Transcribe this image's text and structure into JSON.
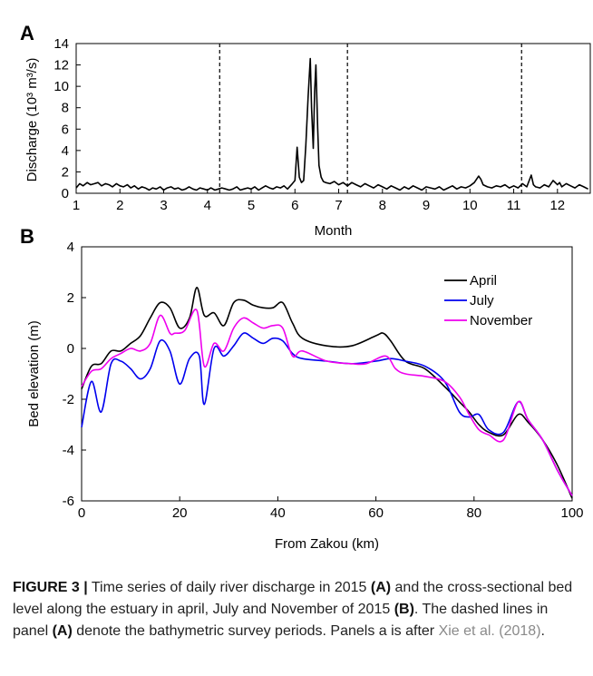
{
  "chart_data": [
    {
      "panel": "A",
      "type": "line",
      "xlabel": "Month",
      "ylabel": "Discharge (10³ m³/s)",
      "xlim": [
        1,
        12.75
      ],
      "ylim": [
        0,
        14
      ],
      "xticks": [
        "1",
        "2",
        "3",
        "4",
        "5",
        "6",
        "7",
        "8",
        "9",
        "10",
        "11",
        "12"
      ],
      "yticks": [
        "0",
        "2",
        "4",
        "6",
        "8",
        "10",
        "12",
        "14"
      ],
      "vlines_dashed": [
        4.28,
        7.2,
        11.18
      ],
      "grid": false,
      "series": [
        {
          "color": "#000000",
          "x": [
            1.0,
            1.08,
            1.16,
            1.25,
            1.33,
            1.42,
            1.5,
            1.58,
            1.67,
            1.75,
            1.83,
            1.92,
            2.0,
            2.08,
            2.17,
            2.25,
            2.33,
            2.42,
            2.5,
            2.58,
            2.67,
            2.75,
            2.83,
            2.92,
            3.0,
            3.08,
            3.17,
            3.25,
            3.33,
            3.42,
            3.5,
            3.58,
            3.67,
            3.75,
            3.83,
            3.92,
            4.0,
            4.08,
            4.17,
            4.25,
            4.33,
            4.42,
            4.5,
            4.58,
            4.67,
            4.75,
            4.83,
            4.92,
            5.0,
            5.08,
            5.17,
            5.25,
            5.33,
            5.42,
            5.5,
            5.58,
            5.67,
            5.75,
            5.83,
            5.92,
            6.0,
            6.05,
            6.1,
            6.15,
            6.2,
            6.25,
            6.3,
            6.35,
            6.38,
            6.42,
            6.45,
            6.48,
            6.52,
            6.55,
            6.6,
            6.65,
            6.7,
            6.8,
            6.9,
            7.0,
            7.1,
            7.2,
            7.3,
            7.4,
            7.5,
            7.6,
            7.7,
            7.8,
            7.9,
            8.0,
            8.1,
            8.2,
            8.3,
            8.4,
            8.5,
            8.6,
            8.7,
            8.8,
            8.9,
            9.0,
            9.1,
            9.2,
            9.3,
            9.4,
            9.5,
            9.6,
            9.7,
            9.8,
            9.9,
            10.0,
            10.1,
            10.2,
            10.25,
            10.3,
            10.4,
            10.5,
            10.6,
            10.7,
            10.8,
            10.9,
            11.0,
            11.1,
            11.2,
            11.3,
            11.4,
            11.45,
            11.5,
            11.6,
            11.7,
            11.8,
            11.9,
            12.0,
            12.05,
            12.1,
            12.2,
            12.3,
            12.4,
            12.5,
            12.6,
            12.7
          ],
          "y": [
            0.5,
            0.9,
            0.7,
            1.0,
            0.8,
            0.9,
            1.0,
            0.7,
            0.9,
            0.8,
            0.6,
            0.9,
            0.7,
            0.6,
            0.8,
            0.5,
            0.7,
            0.4,
            0.6,
            0.5,
            0.3,
            0.5,
            0.4,
            0.6,
            0.3,
            0.5,
            0.6,
            0.4,
            0.5,
            0.3,
            0.4,
            0.6,
            0.4,
            0.3,
            0.5,
            0.4,
            0.3,
            0.5,
            0.3,
            0.4,
            0.5,
            0.4,
            0.3,
            0.4,
            0.6,
            0.3,
            0.4,
            0.5,
            0.4,
            0.6,
            0.3,
            0.5,
            0.7,
            0.5,
            0.4,
            0.6,
            0.5,
            0.7,
            0.4,
            0.8,
            1.2,
            4.3,
            1.5,
            1.0,
            1.2,
            4.5,
            9.0,
            12.6,
            8.0,
            4.2,
            9.5,
            12.0,
            6.0,
            2.6,
            1.5,
            1.1,
            1.0,
            0.9,
            1.1,
            0.8,
            1.0,
            0.7,
            1.0,
            0.8,
            0.6,
            0.9,
            0.7,
            0.5,
            0.8,
            0.6,
            0.4,
            0.7,
            0.5,
            0.3,
            0.6,
            0.4,
            0.7,
            0.5,
            0.3,
            0.6,
            0.5,
            0.4,
            0.6,
            0.3,
            0.5,
            0.7,
            0.4,
            0.6,
            0.5,
            0.7,
            1.0,
            1.6,
            1.3,
            0.8,
            0.6,
            0.5,
            0.7,
            0.6,
            0.8,
            0.5,
            0.7,
            0.5,
            0.9,
            0.6,
            1.7,
            0.8,
            0.6,
            0.5,
            0.8,
            0.6,
            1.2,
            0.8,
            1.0,
            0.6,
            0.9,
            0.7,
            0.5,
            0.8,
            0.6,
            0.4
          ]
        }
      ]
    },
    {
      "panel": "B",
      "type": "line",
      "xlabel": "From Zakou (km)",
      "ylabel": "Bed elevation (m)",
      "xlim": [
        0,
        100
      ],
      "ylim": [
        -6,
        4
      ],
      "xticks": [
        "0",
        "20",
        "40",
        "60",
        "80",
        "100"
      ],
      "yticks": [
        "-6",
        "-4",
        "-2",
        "0",
        "2",
        "4"
      ],
      "legend_position": "top-right",
      "grid": false,
      "series": [
        {
          "name": "April",
          "color": "#000000",
          "x": [
            0,
            2,
            4,
            6,
            8,
            10,
            12,
            14,
            16,
            18,
            20,
            22,
            23.5,
            25,
            27,
            29,
            31,
            33,
            35,
            37,
            39,
            41,
            43,
            45,
            50,
            55,
            60,
            61.5,
            63,
            66,
            70,
            74,
            77,
            79,
            81,
            83,
            86,
            89,
            91,
            94,
            97,
            100
          ],
          "y": [
            -1.6,
            -0.7,
            -0.6,
            -0.1,
            -0.1,
            0.2,
            0.5,
            1.2,
            1.8,
            1.6,
            0.8,
            1.2,
            2.4,
            1.3,
            1.4,
            0.9,
            1.8,
            1.9,
            1.7,
            1.6,
            1.6,
            1.8,
            1.0,
            0.4,
            0.1,
            0.1,
            0.5,
            0.6,
            0.3,
            -0.5,
            -0.8,
            -1.5,
            -2.1,
            -2.5,
            -3.0,
            -3.3,
            -3.4,
            -2.6,
            -2.9,
            -3.6,
            -4.6,
            -5.9
          ]
        },
        {
          "name": "July",
          "color": "#0000ee",
          "x": [
            0,
            2,
            4,
            6,
            8,
            10,
            12,
            14,
            16,
            18,
            20,
            22,
            24,
            25,
            27,
            29,
            31,
            33,
            35,
            37,
            39,
            41,
            43,
            45,
            50,
            55,
            60,
            63,
            66,
            70,
            74,
            77,
            79,
            81,
            83,
            86,
            89,
            91,
            94,
            97,
            100
          ],
          "y": [
            -3.1,
            -1.3,
            -2.5,
            -0.6,
            -0.5,
            -0.8,
            -1.2,
            -0.8,
            0.3,
            -0.1,
            -1.4,
            -0.4,
            -0.3,
            -2.2,
            0.0,
            -0.3,
            0.1,
            0.6,
            0.4,
            0.2,
            0.4,
            0.3,
            -0.2,
            -0.4,
            -0.5,
            -0.6,
            -0.5,
            -0.4,
            -0.5,
            -0.7,
            -1.3,
            -2.5,
            -2.7,
            -2.6,
            -3.2,
            -3.3,
            -2.1,
            -2.8,
            -3.6,
            -4.8,
            -5.8
          ]
        },
        {
          "name": "November",
          "color": "#ee00ee",
          "x": [
            0,
            2,
            4,
            6,
            8,
            10,
            12,
            14,
            16,
            18,
            19,
            21,
            23.5,
            25,
            27,
            29,
            31,
            33,
            35,
            37,
            39,
            41,
            43,
            45,
            50,
            55,
            58,
            62,
            64,
            66,
            70,
            74,
            77,
            79,
            81,
            83,
            86,
            89,
            91,
            94,
            97,
            100
          ],
          "y": [
            -1.5,
            -0.9,
            -0.8,
            -0.4,
            -0.2,
            0.0,
            -0.1,
            0.2,
            1.3,
            0.6,
            0.6,
            0.7,
            1.5,
            -0.7,
            0.2,
            -0.1,
            0.8,
            1.2,
            1.0,
            0.8,
            0.9,
            0.8,
            -0.3,
            -0.1,
            -0.5,
            -0.6,
            -0.6,
            -0.3,
            -0.8,
            -1.0,
            -1.1,
            -1.3,
            -1.9,
            -2.6,
            -3.2,
            -3.4,
            -3.6,
            -2.1,
            -2.8,
            -3.6,
            -4.8,
            -5.8
          ]
        }
      ]
    }
  ],
  "caption": {
    "label": "FIGURE 3 |",
    "part1": " Time series of daily river discharge in 2015 ",
    "ref_a": "(A)",
    "part2": " and the cross-sectional bed level along the estuary in april, July and November of 2015 ",
    "ref_b": "(B)",
    "part3": ". The dashed lines in panel ",
    "ref_a2": "(A)",
    "part4": " denote the bathymetric survey periods. Panels a is after ",
    "citation": "Xie et al. (2018)",
    "part5": "."
  }
}
